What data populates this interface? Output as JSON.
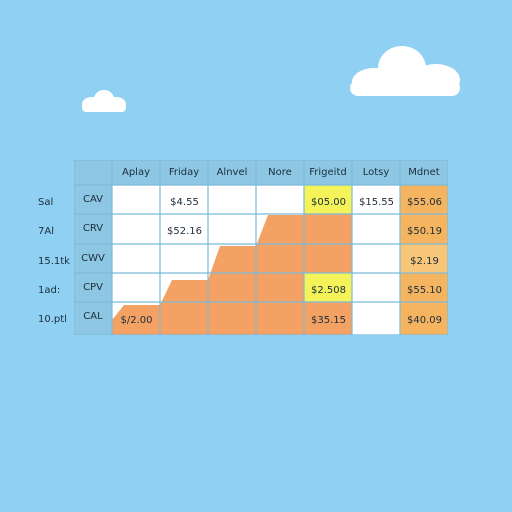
{
  "columns": [
    "Aplay",
    "Friday",
    "Alnvel",
    "Nore",
    "Frigeitd",
    "Lotsy",
    "Mdnet"
  ],
  "rows": [
    {
      "label": "Sal",
      "code": "CAV",
      "cells": [
        "",
        "$4.55",
        "",
        "",
        "$05.00",
        "$15.55",
        "$55.06"
      ]
    },
    {
      "label": "7Al",
      "code": "CRV",
      "cells": [
        "",
        "$52.16",
        "",
        "",
        "",
        "",
        "$50.19"
      ]
    },
    {
      "label": "15.1tk",
      "code": "CWV",
      "cells": [
        "",
        "",
        "",
        "",
        "",
        "",
        "$2.19"
      ]
    },
    {
      "label": "1ad:",
      "code": "CPV",
      "cells": [
        "",
        "",
        "",
        "",
        "$2.508",
        "",
        "$55.10"
      ]
    },
    {
      "label": "10.ptl",
      "code": "CAL",
      "cells": [
        "$/2.00",
        "",
        "",
        "",
        "$35.15",
        "",
        "$40.09"
      ]
    }
  ],
  "colors": {
    "sky": "#8fd0f3",
    "header": "#8dc7e4",
    "cell": "#ffffff",
    "grid": "#7cbad8",
    "area": "#f4a263",
    "highlight": "#f4f45a",
    "accent_col": "#f5b460"
  }
}
